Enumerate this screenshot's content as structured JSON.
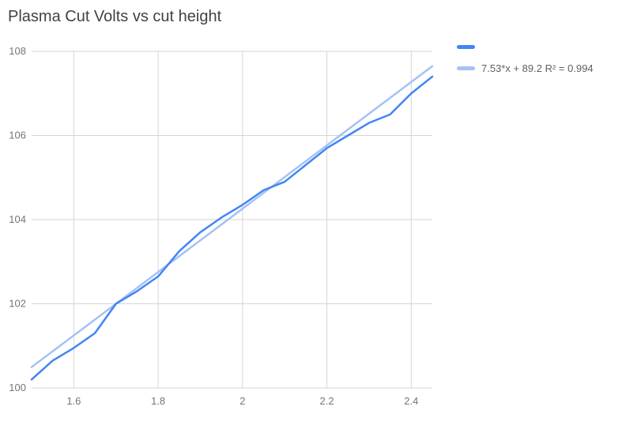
{
  "title": "Plasma Cut Volts vs cut height",
  "legend": {
    "series_label": "",
    "trend_label": "7.53*x + 89.2 R² = 0.994"
  },
  "colors": {
    "series": "#4285f4",
    "trendline": "#a4c2f4",
    "grid": "#d5d5d5",
    "tick_text": "#757575",
    "title_text": "#424242"
  },
  "chart_data": {
    "type": "line",
    "title": "Plasma Cut Volts vs cut height",
    "xlabel": "",
    "ylabel": "",
    "x": [
      1.5,
      1.55,
      1.6,
      1.65,
      1.7,
      1.75,
      1.8,
      1.85,
      1.9,
      1.95,
      2.0,
      2.05,
      2.1,
      2.15,
      2.2,
      2.25,
      2.3,
      2.35,
      2.4,
      2.45
    ],
    "series": [
      {
        "name": "",
        "color": "#4285f4",
        "values": [
          100.2,
          100.65,
          100.95,
          101.3,
          102.0,
          102.3,
          102.65,
          103.25,
          103.7,
          104.05,
          104.35,
          104.7,
          104.9,
          105.3,
          105.7,
          106.0,
          106.3,
          106.5,
          107.0,
          107.4
        ]
      },
      {
        "name": "7.53*x + 89.2 R² = 0.994",
        "color": "#a4c2f4",
        "trendline": true,
        "slope": 7.53,
        "intercept": 89.2,
        "r2": 0.994
      }
    ],
    "xlim": [
      1.5,
      2.45
    ],
    "ylim": [
      100,
      108
    ],
    "x_ticks": [
      1.6,
      1.8,
      2,
      2.2,
      2.4
    ],
    "y_ticks": [
      100,
      102,
      104,
      106,
      108
    ],
    "grid": true,
    "legend_position": "right"
  }
}
